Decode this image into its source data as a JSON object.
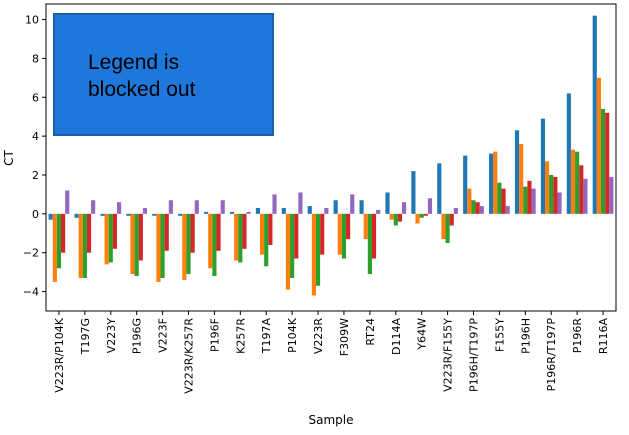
{
  "chart_data": {
    "type": "bar",
    "xlabel": "Sample",
    "ylabel": "CT",
    "ylim": [
      -5,
      10.8
    ],
    "yticks": [
      -4,
      -2,
      0,
      2,
      4,
      6,
      8,
      10
    ],
    "categories": [
      "V223R/P104K",
      "T197G",
      "V223Y",
      "P196G",
      "V223F",
      "V223R/K257R",
      "P196F",
      "K257R",
      "T197A",
      "P104K",
      "V223R",
      "F309W",
      "RT24",
      "D114A",
      "Y64W",
      "V223R/F155Y",
      "P196H/T197P",
      "F155Y",
      "P196H",
      "P196R/T197P",
      "P196R",
      "R116A"
    ],
    "series": [
      {
        "color": "#1f77b4",
        "values": [
          -0.3,
          -0.2,
          -0.1,
          -0.1,
          -0.1,
          -0.1,
          0.1,
          0.1,
          0.3,
          0.3,
          0.4,
          0.7,
          0.7,
          1.1,
          2.2,
          2.6,
          3.0,
          3.1,
          4.3,
          4.9,
          6.2,
          10.2
        ]
      },
      {
        "color": "#ff7f0e",
        "values": [
          -3.5,
          -3.3,
          -2.6,
          -3.1,
          -3.5,
          -3.4,
          -2.8,
          -2.4,
          -2.1,
          -3.9,
          -4.2,
          -2.1,
          -1.3,
          -0.3,
          -0.5,
          -1.3,
          1.3,
          3.2,
          3.6,
          2.7,
          3.3,
          7.0
        ]
      },
      {
        "color": "#2ca02c",
        "values": [
          -2.8,
          -3.3,
          -2.5,
          -3.2,
          -3.3,
          -3.1,
          -3.2,
          -2.5,
          -2.7,
          -3.3,
          -3.7,
          -2.3,
          -3.1,
          -0.6,
          -0.2,
          -1.5,
          0.7,
          1.6,
          1.4,
          2.0,
          3.2,
          5.4
        ]
      },
      {
        "color": "#d62728",
        "values": [
          -2.0,
          -2.0,
          -1.8,
          -2.4,
          -1.9,
          -2.0,
          -1.9,
          -1.8,
          -1.6,
          -2.3,
          -2.1,
          -1.3,
          -2.3,
          -0.4,
          -0.1,
          -0.6,
          0.6,
          1.3,
          1.7,
          1.9,
          2.5,
          5.2
        ]
      },
      {
        "color": "#9467bd",
        "values": [
          1.2,
          0.7,
          0.6,
          0.3,
          0.7,
          0.7,
          0.7,
          0.1,
          1.0,
          1.1,
          0.3,
          1.0,
          0.2,
          0.6,
          0.8,
          0.3,
          0.4,
          0.4,
          1.3,
          1.1,
          1.8,
          1.9
        ]
      }
    ],
    "annotation": "Legend is\nblocked out",
    "legend": "top-left",
    "grid": false
  }
}
